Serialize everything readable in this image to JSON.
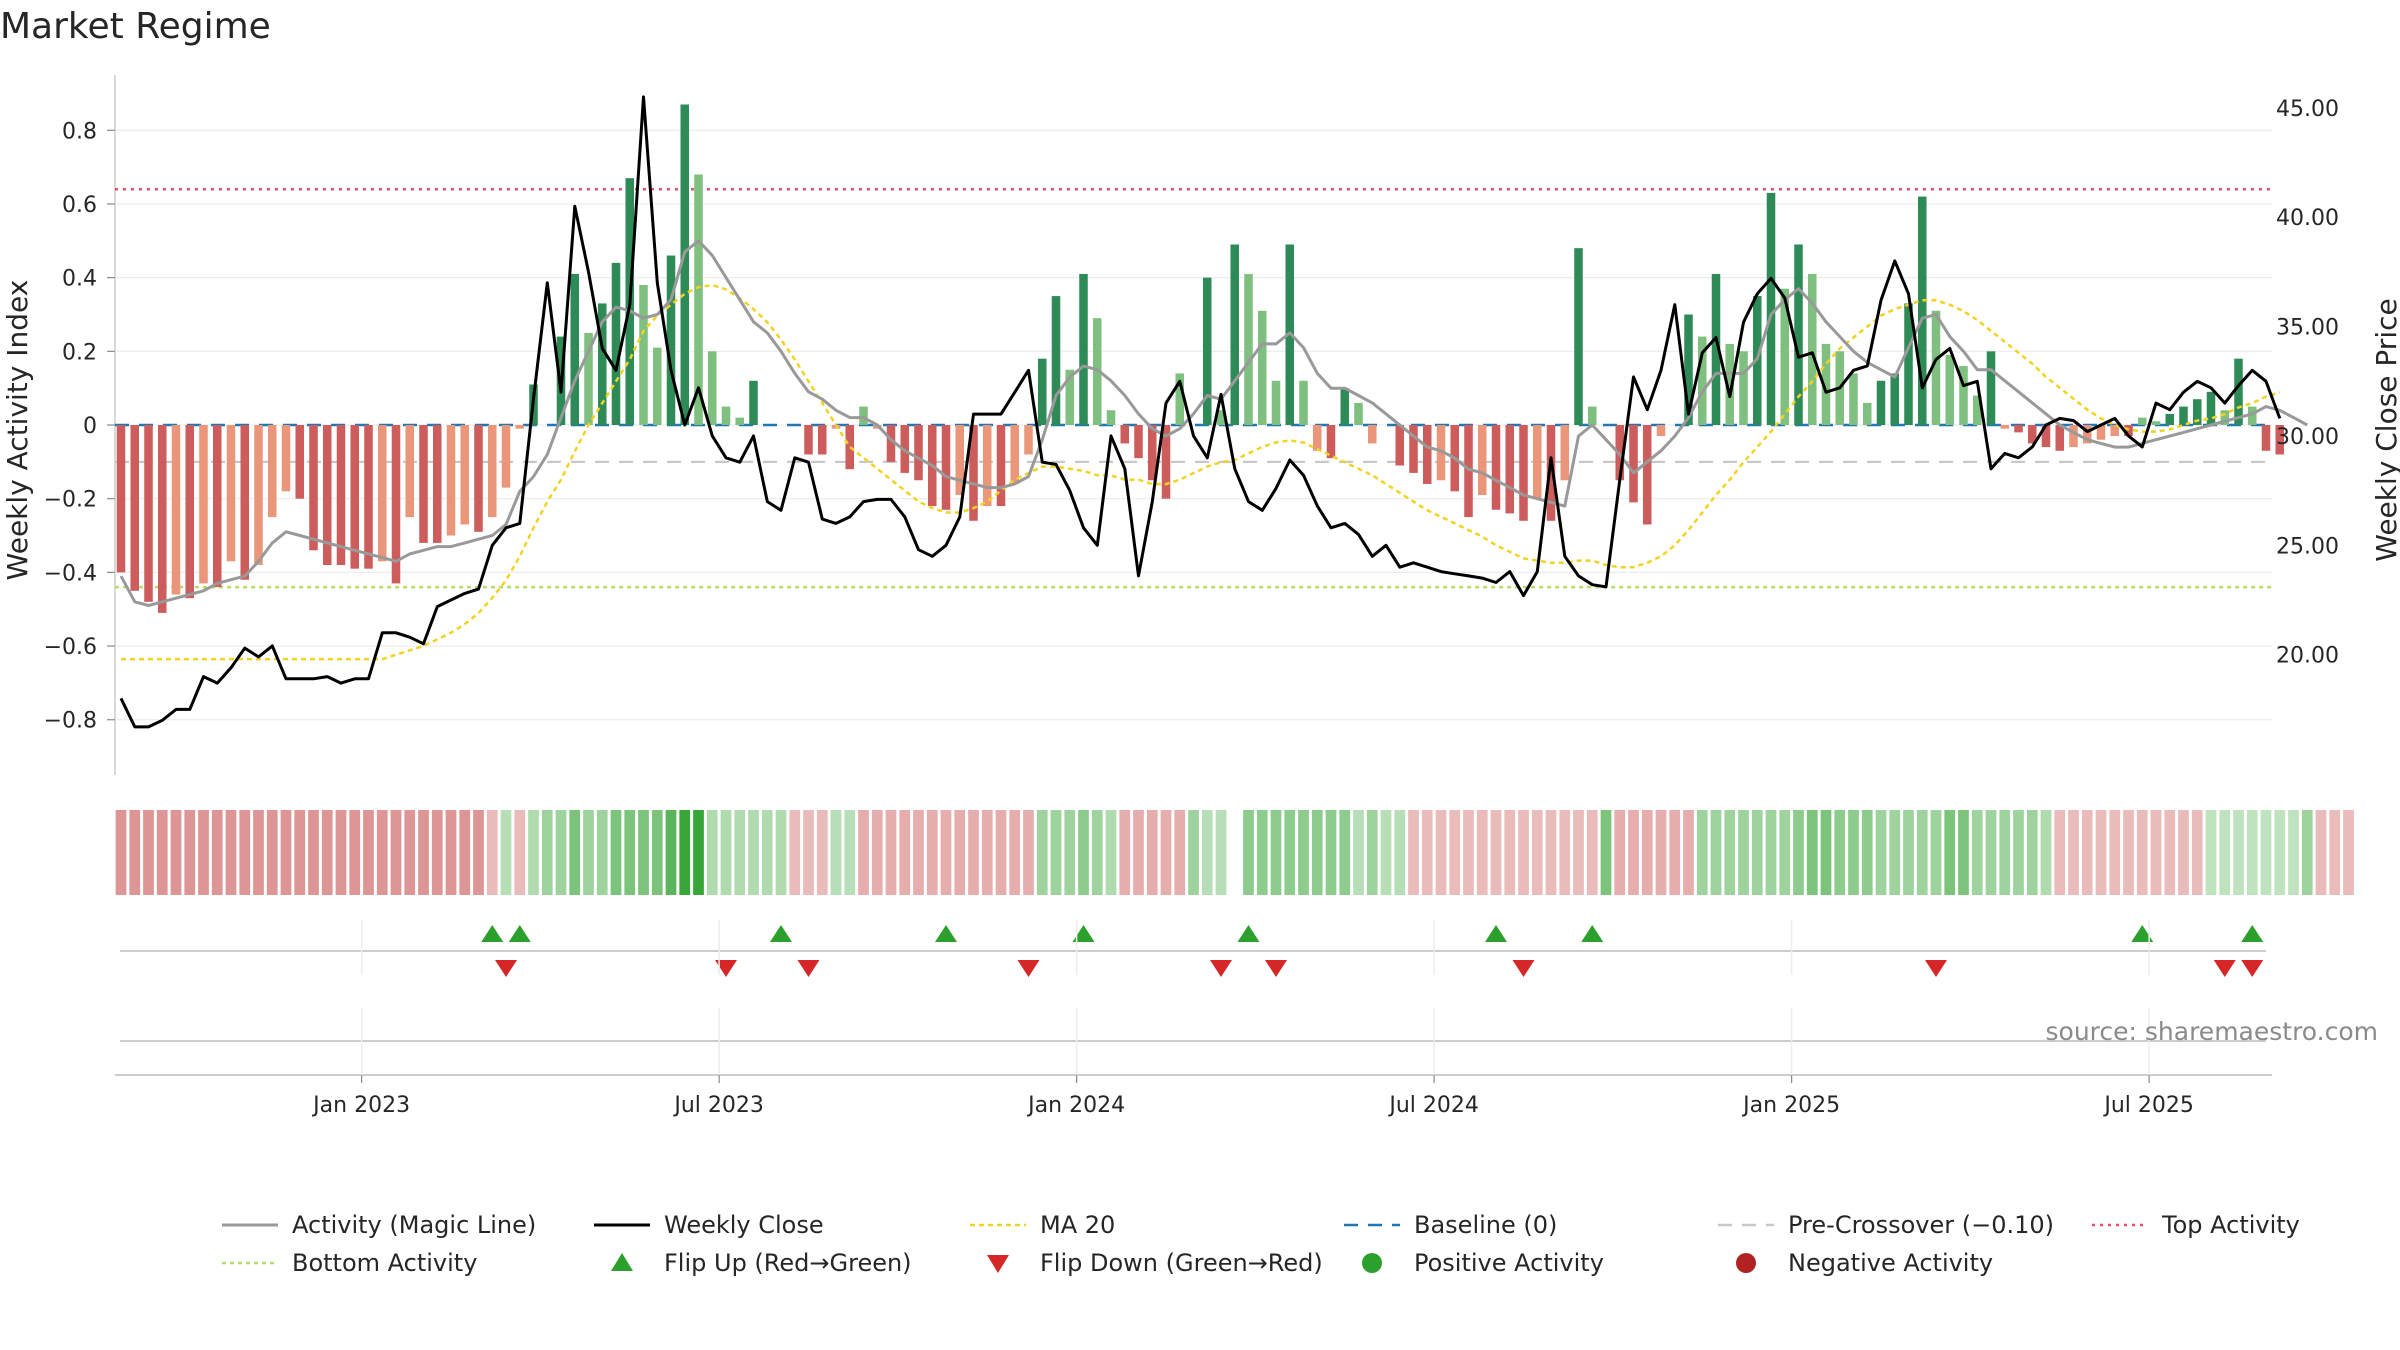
{
  "chart_data": {
    "type": "bar",
    "title": "Market Regime",
    "ylabel_left": "Weekly Activity Index",
    "ylabel_right": "Weekly Close Price",
    "source": "source: sharemaestro.com",
    "ylim_left": [
      -0.95,
      0.95
    ],
    "ylim_right": [
      14.5,
      46.5
    ],
    "yticks_left": [
      {
        "v": 0.8,
        "label": "0.8"
      },
      {
        "v": 0.6,
        "label": "0.6"
      },
      {
        "v": 0.4,
        "label": "0.4"
      },
      {
        "v": 0.2,
        "label": "0.2"
      },
      {
        "v": 0,
        "label": "0"
      },
      {
        "v": -0.2,
        "label": "−0.2"
      },
      {
        "v": -0.4,
        "label": "−0.4"
      },
      {
        "v": -0.6,
        "label": "−0.6"
      },
      {
        "v": -0.8,
        "label": "−0.8"
      }
    ],
    "yticks_right": [
      {
        "v": 45,
        "label": "45.00"
      },
      {
        "v": 40,
        "label": "40.00"
      },
      {
        "v": 35,
        "label": "35.00"
      },
      {
        "v": 30,
        "label": "30.00"
      },
      {
        "v": 25,
        "label": "25.00"
      },
      {
        "v": 20,
        "label": "20.00"
      }
    ],
    "xticks": [
      {
        "week": 17.5,
        "label": "Jan 2023"
      },
      {
        "week": 43.5,
        "label": "Jul 2023"
      },
      {
        "week": 69.5,
        "label": "Jan 2024"
      },
      {
        "week": 95.5,
        "label": "Jul 2024"
      },
      {
        "week": 121.5,
        "label": "Jan 2025"
      },
      {
        "week": 147.5,
        "label": "Jul 2025"
      }
    ],
    "week_range": [
      0,
      156
    ],
    "activity": [
      -0.4,
      -0.45,
      -0.48,
      -0.51,
      -0.46,
      -0.47,
      -0.43,
      -0.44,
      -0.37,
      -0.42,
      -0.38,
      -0.25,
      -0.18,
      -0.2,
      -0.34,
      -0.38,
      -0.38,
      -0.39,
      -0.39,
      -0.37,
      -0.43,
      -0.25,
      -0.32,
      -0.32,
      -0.3,
      -0.27,
      -0.29,
      -0.25,
      -0.17,
      -0.01,
      0.11,
      0,
      0.24,
      0.41,
      0.25,
      0.33,
      0.44,
      0.67,
      0.38,
      0.21,
      0.46,
      0.87,
      0.68,
      0.2,
      0.05,
      0.02,
      0.12,
      0,
      0,
      0,
      -0.08,
      -0.08,
      -0.01,
      -0.12,
      0.05,
      -0.01,
      -0.1,
      -0.13,
      -0.15,
      -0.22,
      -0.23,
      -0.19,
      -0.26,
      -0.22,
      -0.22,
      -0.16,
      -0.08,
      0.18,
      0.35,
      0.15,
      0.41,
      0.29,
      0.04,
      -0.05,
      -0.09,
      -0.15,
      -0.2,
      0.14,
      0,
      0.4,
      0.04,
      0.49,
      0.41,
      0.31,
      0.12,
      0.49,
      0.12,
      -0.07,
      -0.09,
      0.1,
      0.06,
      -0.05,
      0,
      -0.11,
      -0.13,
      -0.16,
      -0.15,
      -0.18,
      -0.25,
      -0.19,
      -0.23,
      -0.24,
      -0.26,
      -0.2,
      -0.26,
      -0.15,
      0.48,
      0.05,
      0,
      -0.15,
      -0.21,
      -0.27,
      -0.03,
      0,
      0.3,
      0.24,
      0.41,
      0.22,
      0.2,
      0.35,
      0.63,
      0.37,
      0.49,
      0.41,
      0.22,
      0.2,
      0.14,
      0.06,
      0.12,
      0.14,
      0.33,
      0.62,
      0.31,
      0.19,
      0.16,
      0.08,
      0.2,
      -0.01,
      -0.02,
      -0.05,
      -0.06,
      -0.07,
      -0.06,
      -0.05,
      -0.04,
      -0.03,
      -0.03,
      0.02,
      0.01,
      0.03,
      0.05,
      0.07,
      0.09,
      0.04,
      0.18,
      0.05,
      -0.07,
      -0.08
    ],
    "magic_line": [
      -0.41,
      -0.48,
      -0.49,
      -0.48,
      -0.47,
      -0.46,
      -0.45,
      -0.43,
      -0.42,
      -0.41,
      -0.37,
      -0.32,
      -0.29,
      -0.3,
      -0.31,
      -0.32,
      -0.33,
      -0.34,
      -0.35,
      -0.36,
      -0.37,
      -0.35,
      -0.34,
      -0.33,
      -0.33,
      -0.32,
      -0.31,
      -0.3,
      -0.27,
      -0.18,
      -0.14,
      -0.08,
      0.02,
      0.12,
      0.2,
      0.28,
      0.32,
      0.31,
      0.29,
      0.3,
      0.34,
      0.47,
      0.5,
      0.46,
      0.4,
      0.34,
      0.28,
      0.25,
      0.2,
      0.14,
      0.09,
      0.07,
      0.04,
      0.02,
      0.02,
      0,
      -0.04,
      -0.07,
      -0.09,
      -0.11,
      -0.14,
      -0.15,
      -0.16,
      -0.17,
      -0.17,
      -0.16,
      -0.14,
      -0.04,
      0.08,
      0.13,
      0.16,
      0.15,
      0.12,
      0.08,
      0.03,
      -0.01,
      -0.03,
      -0.01,
      0.03,
      0.08,
      0.07,
      0.12,
      0.17,
      0.22,
      0.22,
      0.25,
      0.21,
      0.14,
      0.1,
      0.1,
      0.08,
      0.06,
      0.03,
      0,
      -0.03,
      -0.06,
      -0.07,
      -0.09,
      -0.12,
      -0.13,
      -0.15,
      -0.17,
      -0.19,
      -0.2,
      -0.21,
      -0.22,
      -0.03,
      0,
      -0.04,
      -0.08,
      -0.13,
      -0.1,
      -0.07,
      -0.03,
      0.02,
      0.09,
      0.14,
      0.14,
      0.14,
      0.18,
      0.3,
      0.34,
      0.37,
      0.33,
      0.28,
      0.24,
      0.2,
      0.17,
      0.15,
      0.13,
      0.21,
      0.29,
      0.3,
      0.24,
      0.2,
      0.15,
      0.15,
      0.12,
      0.09,
      0.06,
      0.03,
      0,
      -0.02,
      -0.04,
      -0.05,
      -0.06,
      -0.06,
      -0.05,
      -0.04,
      -0.03,
      -0.02,
      -0.01,
      0,
      0.01,
      0.02,
      0.03,
      0.05,
      0.04,
      0.02,
      0
    ],
    "close": [
      18.0,
      16.7,
      16.7,
      17.0,
      17.5,
      17.5,
      19.0,
      18.7,
      19.4,
      20.3,
      19.9,
      20.4,
      18.9,
      18.9,
      18.9,
      19.0,
      18.7,
      18.9,
      18.9,
      21.0,
      21.0,
      20.8,
      20.5,
      22.2,
      22.5,
      22.8,
      23.0,
      25.0,
      25.8,
      26.0,
      31.7,
      37.0,
      32.0,
      40.5,
      37.5,
      34.0,
      33.0,
      36.0,
      45.5,
      37.0,
      33.0,
      30.5,
      32.2,
      30.0,
      29.0,
      28.8,
      30.0,
      27.0,
      26.6,
      29.0,
      28.8,
      26.2,
      26.0,
      26.3,
      27.0,
      27.1,
      27.1,
      26.3,
      24.8,
      24.5,
      25.0,
      26.3,
      31.0,
      31.0,
      31.0,
      32.0,
      33.0,
      28.8,
      28.7,
      27.5,
      25.8,
      25.0,
      30.0,
      28.5,
      23.6,
      27.0,
      31.5,
      32.5,
      30.0,
      29.0,
      31.9,
      28.5,
      27.0,
      26.6,
      27.6,
      28.9,
      28.2,
      26.8,
      25.8,
      26.0,
      25.5,
      24.5,
      25.0,
      24.0,
      24.2,
      24.0,
      23.8,
      23.7,
      23.6,
      23.5,
      23.3,
      23.8,
      22.7,
      23.8,
      29.0,
      24.5,
      23.6,
      23.2,
      23.1,
      28.0,
      32.7,
      31.2,
      33.0,
      36.0,
      31.0,
      33.8,
      34.5,
      31.8,
      35.2,
      36.5,
      37.2,
      36.3,
      33.6,
      33.8,
      32.0,
      32.2,
      33.0,
      33.2,
      36.2,
      38.0,
      36.5,
      32.2,
      33.5,
      34.0,
      32.3,
      32.5,
      28.5,
      29.2,
      29.0,
      29.5,
      30.5,
      30.8,
      30.7,
      30.2,
      30.5,
      30.8,
      30.0,
      29.5,
      31.5,
      31.2,
      32.0,
      32.5,
      32.2,
      31.5,
      32.3,
      33.0,
      32.5,
      30.8
    ],
    "ma20": [
      19.8,
      19.8,
      19.8,
      19.8,
      19.8,
      19.8,
      19.8,
      19.8,
      19.8,
      19.8,
      19.8,
      19.8,
      19.8,
      19.8,
      19.8,
      19.8,
      19.8,
      19.8,
      19.8,
      19.8,
      20.0,
      20.2,
      20.4,
      20.7,
      21.0,
      21.4,
      21.9,
      22.6,
      23.4,
      24.5,
      25.8,
      27.0,
      28.0,
      29.3,
      30.5,
      31.5,
      32.5,
      33.5,
      34.8,
      35.5,
      36.0,
      36.5,
      36.8,
      36.9,
      36.7,
      36.3,
      35.8,
      35.2,
      34.4,
      33.5,
      32.5,
      31.5,
      30.5,
      29.5,
      29.0,
      28.5,
      28.0,
      27.5,
      27.0,
      26.7,
      26.5,
      26.5,
      26.7,
      27.0,
      27.5,
      28.0,
      28.3,
      28.6,
      28.6,
      28.5,
      28.4,
      28.2,
      28.2,
      28.0,
      28.0,
      27.8,
      27.8,
      28.0,
      28.3,
      28.6,
      28.8,
      28.9,
      29.2,
      29.5,
      29.7,
      29.8,
      29.7,
      29.4,
      29.1,
      28.8,
      28.5,
      28.2,
      27.8,
      27.4,
      27.0,
      26.6,
      26.3,
      26.0,
      25.7,
      25.4,
      25.0,
      24.7,
      24.4,
      24.3,
      24.2,
      24.2,
      24.3,
      24.3,
      24.1,
      24.0,
      24.0,
      24.2,
      24.5,
      25.0,
      25.7,
      26.5,
      27.3,
      28.0,
      28.8,
      29.5,
      30.2,
      31.0,
      31.8,
      32.5,
      33.3,
      34.0,
      34.5,
      35.0,
      35.5,
      35.8,
      36.0,
      36.2,
      36.2,
      36.0,
      35.7,
      35.3,
      34.8,
      34.3,
      33.8,
      33.3,
      32.7,
      32.2,
      31.7,
      31.2,
      30.8,
      30.5,
      30.3,
      30.2,
      30.2,
      30.3,
      30.5,
      30.7,
      30.8,
      31.0,
      31.3,
      31.5,
      31.8,
      32.0
    ],
    "baseline": 0,
    "pre_crossover": -0.1,
    "top_activity": 0.64,
    "bottom_activity": -0.44,
    "regime_strip": [
      -0.3,
      -0.3,
      -0.3,
      -0.3,
      -0.3,
      -0.3,
      -0.3,
      -0.3,
      -0.3,
      -0.3,
      -0.3,
      -0.3,
      -0.3,
      -0.3,
      -0.3,
      -0.3,
      -0.3,
      -0.3,
      -0.3,
      -0.3,
      -0.3,
      -0.3,
      -0.3,
      -0.3,
      -0.3,
      -0.3,
      -0.3,
      -0.15,
      0.15,
      -0.15,
      0.2,
      0.3,
      0.3,
      0.5,
      0.3,
      0.3,
      0.5,
      0.5,
      0.5,
      0.5,
      0.7,
      0.9,
      0.9,
      0.2,
      0.2,
      0.2,
      0.2,
      0.2,
      0.2,
      -0.15,
      -0.15,
      -0.15,
      0.15,
      0.15,
      -0.2,
      -0.2,
      -0.2,
      -0.2,
      -0.2,
      -0.2,
      -0.2,
      -0.2,
      -0.2,
      -0.2,
      -0.2,
      -0.2,
      -0.2,
      0.3,
      0.3,
      0.3,
      0.4,
      0.3,
      0.2,
      -0.2,
      -0.2,
      -0.2,
      -0.2,
      -0.2,
      0.3,
      0.15,
      0.15,
      null,
      0.4,
      0.4,
      0.4,
      0.4,
      0.4,
      0.4,
      0.4,
      0.4,
      0.15,
      0.3,
      0.15,
      0.15,
      -0.15,
      -0.15,
      -0.15,
      -0.15,
      -0.15,
      -0.15,
      -0.15,
      -0.15,
      -0.15,
      -0.15,
      -0.15,
      -0.15,
      -0.15,
      -0.15,
      0.5,
      -0.2,
      -0.2,
      -0.2,
      -0.2,
      -0.2,
      -0.2,
      0.3,
      0.3,
      0.3,
      0.3,
      0.3,
      0.3,
      0.3,
      0.4,
      0.5,
      0.5,
      0.4,
      0.4,
      0.4,
      0.3,
      0.3,
      0.3,
      0.3,
      0.3,
      0.5,
      0.5,
      0.3,
      0.3,
      0.3,
      0.3,
      0.3,
      0.2,
      -0.15,
      -0.15,
      -0.15,
      -0.15,
      -0.15,
      -0.15,
      -0.15,
      -0.15,
      -0.15,
      -0.15,
      -0.15,
      0.1,
      0.1,
      0.1,
      0.1,
      0.1,
      0.1,
      0.1,
      0.3,
      -0.15,
      -0.15,
      -0.15
    ],
    "flips_up": [
      27,
      29,
      48,
      60,
      70,
      82,
      100,
      107,
      147,
      155
    ],
    "flips_down": [
      28,
      44,
      50,
      66,
      80,
      84,
      102,
      132,
      153,
      155
    ],
    "legend": [
      {
        "key": "magic",
        "label": "Activity (Magic Line)"
      },
      {
        "key": "close",
        "label": "Weekly Close"
      },
      {
        "key": "ma20",
        "label": "MA 20"
      },
      {
        "key": "baseline",
        "label": "Baseline (0)"
      },
      {
        "key": "precross",
        "label": "Pre-Crossover (−0.10)"
      },
      {
        "key": "top",
        "label": "Top Activity"
      },
      {
        "key": "bottom",
        "label": "Bottom Activity"
      },
      {
        "key": "flipup",
        "label": "Flip Up (Red→Green)"
      },
      {
        "key": "flipdown",
        "label": "Flip Down (Green→Red)"
      },
      {
        "key": "pos",
        "label": "Positive Activity"
      },
      {
        "key": "neg",
        "label": "Negative Activity"
      }
    ],
    "colors": {
      "pos_dark": "#2e8b57",
      "pos_light": "#7fbf7f",
      "neg_dark": "#cd5c5c",
      "neg_light": "#e9967a",
      "magic": "#999999",
      "close": "#000000",
      "ma20": "#f2d321",
      "baseline": "#1f77b4",
      "precross": "#c8c8c8",
      "top": "#e0506e",
      "bottom": "#b5dd6a",
      "flip_up": "#2ca02c",
      "flip_down": "#d62728",
      "pos_dot": "#2ca02c",
      "neg_dot": "#b22222"
    }
  }
}
